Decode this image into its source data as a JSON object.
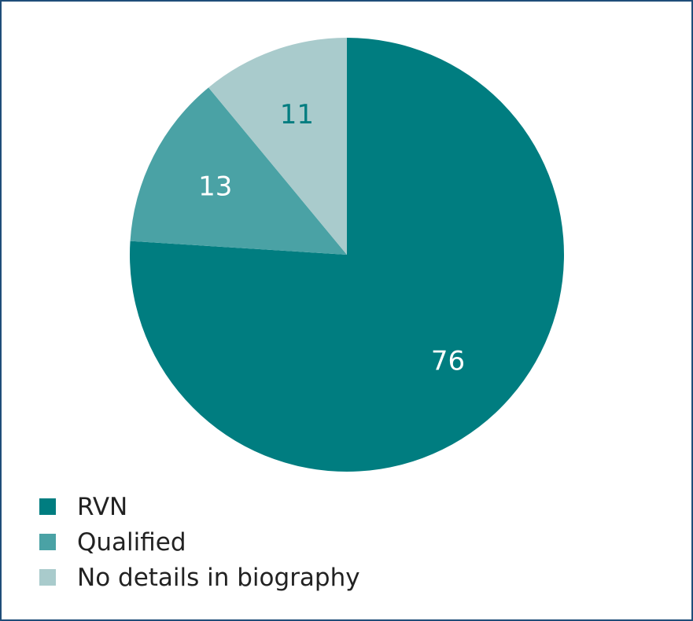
{
  "chart_data": {
    "type": "pie",
    "slices": [
      {
        "label": "RVN",
        "value": 76,
        "color": "#007d80",
        "label_color": "#ffffff"
      },
      {
        "label": "Qualified",
        "value": 13,
        "color": "#4aa2a5",
        "label_color": "#ffffff"
      },
      {
        "label": "No details in biography",
        "value": 11,
        "color": "#a9cbcc",
        "label_color": "#007d80"
      }
    ],
    "start": "top, clockwise",
    "legend_position": "bottom-left"
  }
}
